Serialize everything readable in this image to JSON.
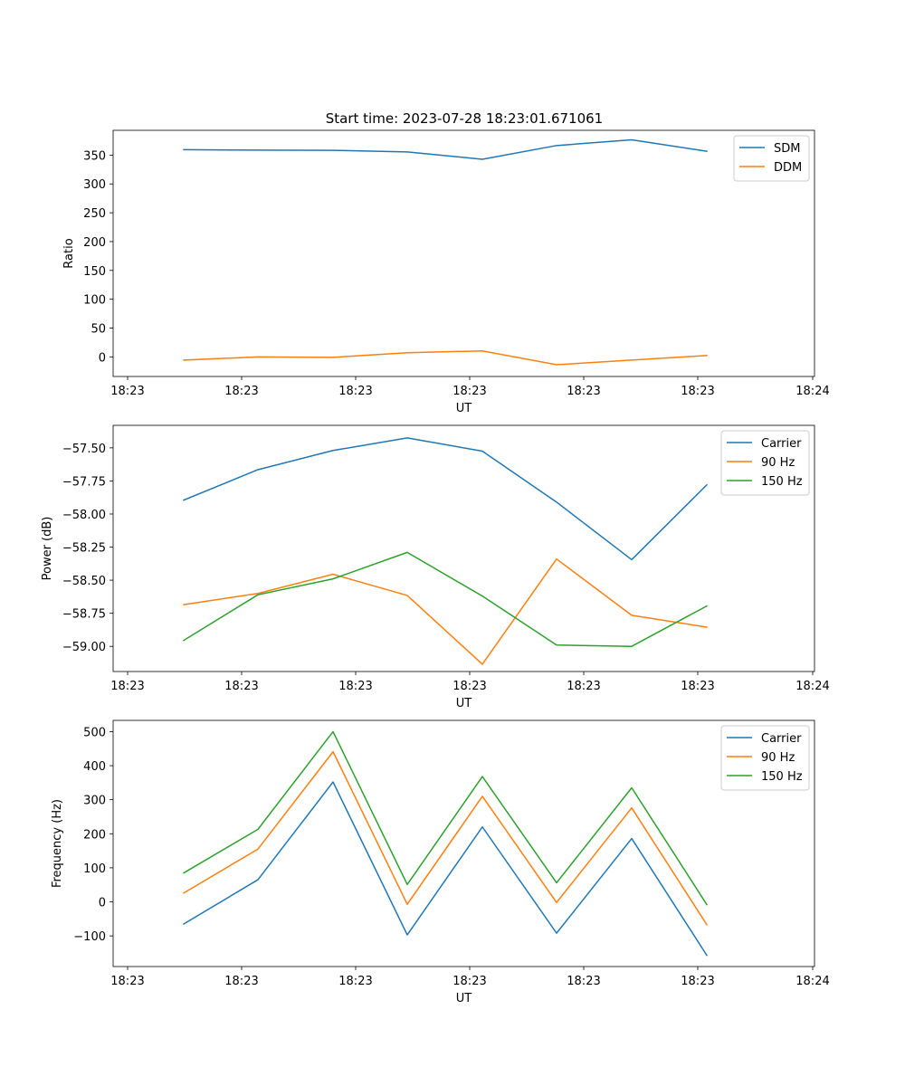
{
  "colors": {
    "blue": "#1f77b4",
    "orange": "#ff7f0e",
    "green": "#2ca02c"
  },
  "chart_data": [
    {
      "type": "line",
      "title": "Start time: 2023-07-28 18:23:01.671061",
      "xlabel": "UT",
      "ylabel": "Ratio",
      "x_tick_labels": [
        "18:23",
        "18:23",
        "18:23",
        "18:23",
        "18:23",
        "18:23",
        "18:24"
      ],
      "ylim": [
        -34,
        393
      ],
      "y_ticks": [
        0,
        50,
        100,
        150,
        200,
        250,
        300,
        350
      ],
      "y_tick_labels": [
        "0",
        "50",
        "100",
        "150",
        "200",
        "250",
        "300",
        "350"
      ],
      "legend_position": "top-right",
      "series": [
        {
          "name": "SDM",
          "color": "#1f77b4",
          "values": [
            359.4,
            358.6,
            358.3,
            355.5,
            342.8,
            366.6,
            376.6,
            356.6
          ]
        },
        {
          "name": "DDM",
          "color": "#ff7f0e",
          "values": [
            -5.6,
            0,
            -0.8,
            7.2,
            10.4,
            -13.6,
            -5.6,
            2.4
          ]
        }
      ]
    },
    {
      "type": "line",
      "title": "",
      "xlabel": "UT",
      "ylabel": "Power (dB)",
      "x_tick_labels": [
        "18:23",
        "18:23",
        "18:23",
        "18:23",
        "18:23",
        "18:23",
        "18:24"
      ],
      "ylim": [
        -59.19,
        -57.33
      ],
      "y_ticks": [
        -59.0,
        -58.75,
        -58.5,
        -58.25,
        -58.0,
        -57.75,
        -57.5
      ],
      "y_tick_labels": [
        "−59.00",
        "−58.75",
        "−58.50",
        "−58.25",
        "−58.00",
        "−57.75",
        "−57.50"
      ],
      "legend_position": "top-right",
      "series": [
        {
          "name": "Carrier",
          "color": "#1f77b4",
          "values": [
            -57.895,
            -57.665,
            -57.52,
            -57.425,
            -57.525,
            -57.91,
            -58.345,
            -57.78
          ]
        },
        {
          "name": "90 Hz",
          "color": "#ff7f0e",
          "values": [
            -58.685,
            -58.6,
            -58.455,
            -58.615,
            -59.135,
            -58.34,
            -58.765,
            -58.855
          ]
        },
        {
          "name": "150 Hz",
          "color": "#2ca02c",
          "values": [
            -58.955,
            -58.61,
            -58.49,
            -58.29,
            -58.62,
            -58.99,
            -59.0,
            -58.695
          ]
        }
      ]
    },
    {
      "type": "line",
      "title": "",
      "xlabel": "UT",
      "ylabel": "Frequency (Hz)",
      "x_tick_labels": [
        "18:23",
        "18:23",
        "18:23",
        "18:23",
        "18:23",
        "18:23",
        "18:24"
      ],
      "ylim": [
        -190,
        533
      ],
      "y_ticks": [
        -100,
        0,
        100,
        200,
        300,
        400,
        500
      ],
      "y_tick_labels": [
        "−100",
        "0",
        "100",
        "200",
        "300",
        "400",
        "500"
      ],
      "legend_position": "top-right",
      "series": [
        {
          "name": "Carrier",
          "color": "#1f77b4",
          "values": [
            -65,
            65,
            352,
            -97,
            220,
            -92,
            186,
            -157
          ]
        },
        {
          "name": "90 Hz",
          "color": "#ff7f0e",
          "values": [
            26,
            155,
            441,
            -7,
            310,
            -2,
            276,
            -67
          ]
        },
        {
          "name": "150 Hz",
          "color": "#2ca02c",
          "values": [
            85,
            213,
            500,
            51,
            368,
            56,
            335,
            -8
          ]
        }
      ]
    }
  ]
}
